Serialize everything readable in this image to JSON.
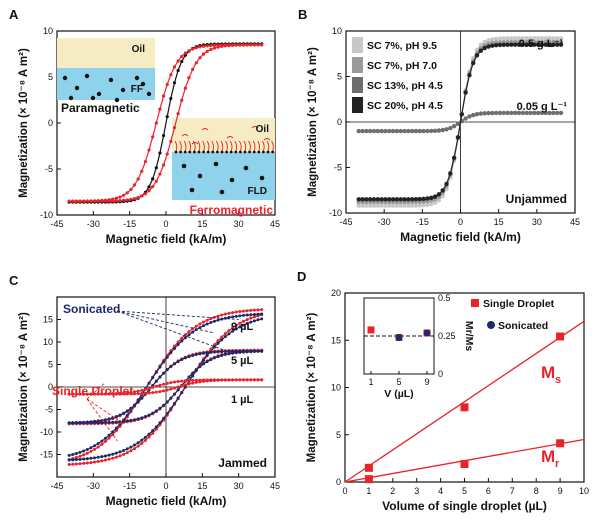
{
  "figure": {
    "panel_letters": [
      "A",
      "B",
      "C",
      "D"
    ],
    "colors": {
      "black": "#111111",
      "red": "#e8232a",
      "navy": "#1c2a6b",
      "gray1": "#c8c8c8",
      "gray2": "#9a9a9a",
      "gray3": "#6e6e6e",
      "gray4": "#222222",
      "water": "#8fd2ec",
      "oil": "#f6ecc4"
    }
  },
  "chart_data": [
    {
      "panel": "A",
      "type": "line",
      "xlabel": "Magnetic field (kA/m)",
      "ylabel": "Magnetization (× 10⁻⁸ A m²)",
      "xlim": [
        -45,
        45
      ],
      "ylim": [
        -10,
        10
      ],
      "xticks": [
        -45,
        -30,
        -15,
        0,
        15,
        30,
        45
      ],
      "yticks": [
        -10,
        -5,
        0,
        5,
        10
      ],
      "annotations": [
        "Paramagnetic",
        "Ferromagnetic"
      ],
      "inset_labels": {
        "top": {
          "oil": "Oil",
          "droplet": "FF"
        },
        "bottom": {
          "oil": "Oil",
          "droplet": "FLD"
        }
      },
      "series": [
        {
          "color": "#111111",
          "type": "anhysteretic",
          "Ms": 8.6,
          "k": 0.16
        },
        {
          "color": "#e8232a",
          "type": "loop",
          "Ms": 8.5,
          "k": 0.12,
          "coercivity": 4
        }
      ]
    },
    {
      "panel": "B",
      "type": "line",
      "xlabel": "Magnetic field (kA/m)",
      "ylabel": "Magnetization (× 10⁻⁸ A m²)",
      "xlim": [
        -45,
        45
      ],
      "ylim": [
        -10,
        10
      ],
      "xticks": [
        -45,
        -30,
        -15,
        0,
        15,
        30,
        45
      ],
      "yticks": [
        -10,
        -5,
        0,
        5,
        10
      ],
      "legend": [
        {
          "label": "SC 7%, pH 9.5",
          "color": "#c8c8c8"
        },
        {
          "label": "SC 7%, pH 7.0",
          "color": "#9a9a9a"
        },
        {
          "label": "SC 13%, pH 4.5",
          "color": "#6e6e6e"
        },
        {
          "label": "SC 20%, pH 4.5",
          "color": "#222222"
        }
      ],
      "annotations": [
        "0.5 g L⁻¹",
        "0.05 g L⁻¹",
        "Unjammed"
      ],
      "series": [
        {
          "color": "#c8c8c8",
          "Ms": 9.2,
          "k": 0.2
        },
        {
          "color": "#9a9a9a",
          "Ms": 8.8,
          "k": 0.2
        },
        {
          "color": "#6e6e6e",
          "Ms": 1.0,
          "k": 0.2
        },
        {
          "color": "#222222",
          "Ms": 8.5,
          "k": 0.2
        }
      ]
    },
    {
      "panel": "C",
      "type": "line",
      "xlabel": "Magnetic field (kA/m)",
      "ylabel": "Magnetization (× 10⁻⁸ A m²)",
      "xlim": [
        -45,
        45
      ],
      "ylim": [
        -20,
        20
      ],
      "xticks": [
        -45,
        -30,
        -15,
        0,
        15,
        30,
        45
      ],
      "yticks": [
        -15,
        -10,
        -5,
        0,
        5,
        10,
        15
      ],
      "annotations": [
        "Sonicated",
        "Single Droplet",
        "9 µL",
        "5 µL",
        "1 µL",
        "Jammed"
      ],
      "series": [
        {
          "name": "Single Droplet 9 µL",
          "color": "#e8232a",
          "Ms": 17.5,
          "k": 0.05,
          "coercivity": 8
        },
        {
          "name": "Sonicated 9 µL",
          "color": "#1c2a6b",
          "Ms": 16.5,
          "k": 0.05,
          "coercivity": 8
        },
        {
          "name": "Single Droplet 5 µL",
          "color": "#e8232a",
          "Ms": 8.2,
          "k": 0.08,
          "coercivity": 6
        },
        {
          "name": "Sonicated 5 µL",
          "color": "#1c2a6b",
          "Ms": 8.0,
          "k": 0.08,
          "coercivity": 6
        },
        {
          "name": "Single Droplet 1 µL",
          "color": "#e8232a",
          "Ms": 1.6,
          "k": 0.1,
          "coercivity": 5
        }
      ]
    },
    {
      "panel": "D",
      "type": "scatter",
      "xlabel": "Volume of single droplet (µL)",
      "ylabel": "Magnetization (× 10⁻⁸ A m²)",
      "xlim": [
        0,
        10
      ],
      "ylim": [
        0,
        20
      ],
      "xticks": [
        0,
        1,
        2,
        3,
        4,
        5,
        6,
        7,
        8,
        9,
        10
      ],
      "yticks": [
        0,
        5,
        10,
        15,
        20
      ],
      "legend": [
        "Single Droplet",
        "Sonicated"
      ],
      "labels": {
        "Ms": "M",
        "Ms_sub": "s",
        "Mr": "M",
        "Mr_sub": "r"
      },
      "series": [
        {
          "name": "Ms",
          "x": [
            1,
            5,
            9
          ],
          "y": [
            1.5,
            7.9,
            15.4
          ],
          "fit_slope": 1.7
        },
        {
          "name": "Mr",
          "x": [
            1,
            5,
            9
          ],
          "y": [
            0.3,
            1.9,
            4.1
          ],
          "fit_slope": 0.45
        }
      ],
      "inset": {
        "xlabel": "V (µL)",
        "ylabel": "Mr/Ms",
        "xticks": [
          1,
          5,
          9
        ],
        "yticks": [
          0,
          0.25,
          0.5
        ],
        "xlim": [
          0,
          10
        ],
        "ylim": [
          0,
          0.5
        ],
        "dashed_y": 0.25,
        "single_droplet": {
          "x": [
            1,
            5,
            9
          ],
          "y": [
            0.29,
            0.24,
            0.27
          ]
        },
        "sonicated": {
          "x": [
            5,
            9
          ],
          "y": [
            0.24,
            0.27
          ]
        }
      }
    }
  ]
}
